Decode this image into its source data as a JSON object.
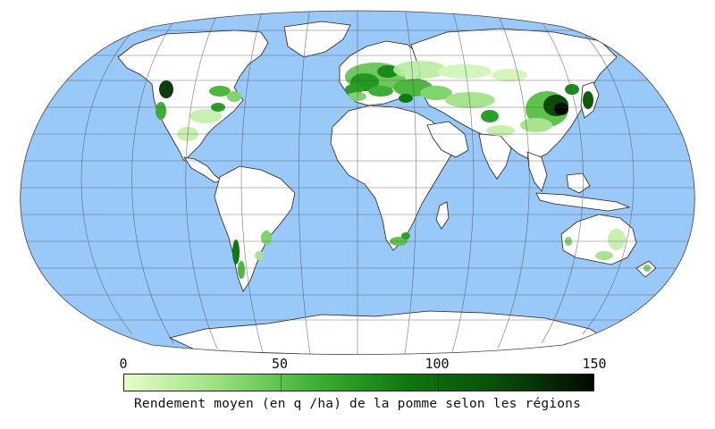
{
  "map": {
    "projection": "Robinson",
    "ocean_color": "#99c9f8",
    "land_color": "#ffffff",
    "graticule_color": "#4a4a4a",
    "graticule": true
  },
  "colorbar": {
    "min": 0,
    "max": 150,
    "ticks": [
      "0",
      "50",
      "100",
      "150"
    ],
    "tick_values": [
      0,
      50,
      100,
      150
    ],
    "colors": [
      "#e9fcc9",
      "#9ae07e",
      "#3fb334",
      "#0d7a0d",
      "#094d09",
      "#030803"
    ],
    "caption": "Rendement moyen (en q /ha) de la pomme selon les régions"
  },
  "regions": [
    {
      "name": "Europe",
      "level": 80
    },
    {
      "name": "Chine (Shandong)",
      "level": 150
    },
    {
      "name": "Japon",
      "level": 120
    },
    {
      "name": "États-Unis (Washington)",
      "level": 110
    },
    {
      "name": "États-Unis (Nord-Est)",
      "level": 60
    },
    {
      "name": "Turquie / Caucase",
      "level": 90
    },
    {
      "name": "Chili / Argentine",
      "level": 100
    },
    {
      "name": "Afrique du Sud",
      "level": 45
    },
    {
      "name": "Australie",
      "level": 25
    },
    {
      "name": "Nouvelle-Zélande",
      "level": 40
    }
  ]
}
